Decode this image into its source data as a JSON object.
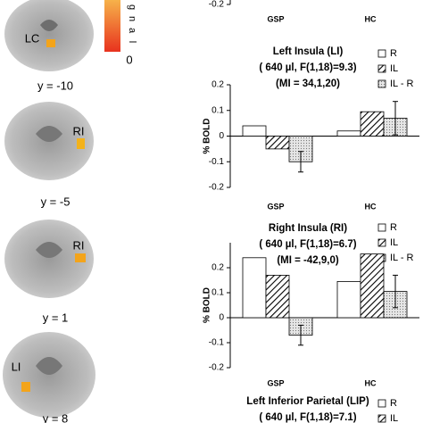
{
  "figure": {
    "colorbar": {
      "label_letters": [
        "g",
        "n",
        "a",
        "l"
      ],
      "min_label": "0"
    },
    "slices": [
      {
        "region": "LC",
        "coord": "y = -10"
      },
      {
        "region": "RI",
        "coord": "y = -5"
      },
      {
        "region": "RI",
        "coord": "y = 1"
      },
      {
        "region": "LI",
        "coord": "y = 8"
      }
    ]
  },
  "chart_data": [
    {
      "type": "bar",
      "categories": [
        "GSP",
        "HC"
      ],
      "ylim": [
        -0.2,
        0.2
      ],
      "yticks": [
        -0.2
      ]
    },
    {
      "type": "bar",
      "title_lines": [
        "Left Insula (LI)",
        "( 640 µl, F(1,18)=9.3)",
        "(MI = 34,1,20)"
      ],
      "ylabel": "% BOLD",
      "categories": [
        "GSP",
        "HC"
      ],
      "ylim": [
        -0.2,
        0.2
      ],
      "yticks": [
        -0.2,
        -0.1,
        0,
        0.1,
        0.2
      ],
      "series": [
        {
          "name": "R",
          "color": "#ffffff",
          "values": [
            0.04,
            0.02
          ]
        },
        {
          "name": "IL",
          "color": "hatch",
          "values": [
            -0.05,
            0.095
          ]
        },
        {
          "name": "IL - R",
          "color": "dots",
          "values": [
            -0.1,
            0.07
          ],
          "errors": [
            0.04,
            0.065
          ]
        }
      ]
    },
    {
      "type": "bar",
      "title_lines": [
        "Right Insula (RI)",
        "( 640 µl, F(1,18)=6.7)",
        "(MI = -42,9,0)"
      ],
      "ylabel": "% BOLD",
      "categories": [
        "GSP",
        "HC"
      ],
      "ylim": [
        -0.2,
        0.3
      ],
      "yticks": [
        -0.2,
        -0.1,
        0,
        0.1,
        0.2
      ],
      "series": [
        {
          "name": "R",
          "color": "#ffffff",
          "values": [
            0.24,
            0.145
          ]
        },
        {
          "name": "IL",
          "color": "hatch",
          "values": [
            0.17,
            0.255
          ]
        },
        {
          "name": "IL - R",
          "color": "dots",
          "values": [
            -0.07,
            0.105
          ],
          "errors": [
            0.04,
            0.065
          ]
        }
      ]
    },
    {
      "type": "bar",
      "title_lines": [
        "Left Inferior Parietal (LIP)",
        "( 640 µl, F(1,18)=7.1)"
      ],
      "series": [
        {
          "name": "R",
          "color": "#ffffff"
        },
        {
          "name": "IL",
          "color": "hatch"
        }
      ]
    }
  ]
}
